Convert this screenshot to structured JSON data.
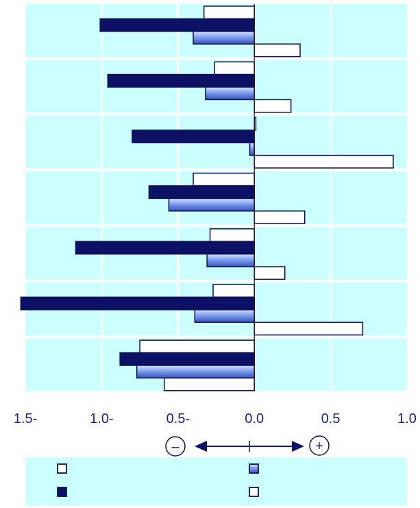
{
  "chart_data": {
    "type": "bar",
    "orientation": "horizontal",
    "grouped": true,
    "groups": 7,
    "xlim": [
      -1.5,
      1.0
    ],
    "x_ticks": [
      -1.5,
      -1.0,
      -0.5,
      0.0,
      0.5,
      1.0
    ],
    "x_tick_labels": [
      "1.5-",
      "1.0-",
      "0.5-",
      "0.0",
      "0.5",
      "1.0"
    ],
    "grid": true,
    "legend_position": "bottom",
    "series": [
      {
        "style": "white",
        "values": [
          -0.33,
          -0.26,
          0.01,
          -0.4,
          -0.29,
          -0.27,
          -0.75
        ]
      },
      {
        "style": "navy",
        "values": [
          -1.01,
          -0.96,
          -0.8,
          -0.69,
          -1.17,
          -1.53,
          -0.88
        ]
      },
      {
        "style": "blue-gradient",
        "values": [
          -0.4,
          -0.32,
          -0.03,
          -0.56,
          -0.31,
          -0.39,
          -0.77
        ]
      },
      {
        "style": "white",
        "values": [
          0.3,
          0.24,
          0.91,
          0.33,
          0.2,
          0.71,
          -0.59
        ]
      }
    ],
    "direction_indicator": {
      "negative_symbol": "–",
      "positive_symbol": "+"
    }
  },
  "colors": {
    "panel": "#ccffff",
    "grid": "#ffffff",
    "navy": "#0d1166",
    "outline": "#0b0f4f",
    "text": "#1a237e",
    "legend_bg": "#ccffff"
  },
  "legend": {
    "items": [
      {
        "style": "white"
      },
      {
        "style": "blue-gradient"
      },
      {
        "style": "navy"
      },
      {
        "style": "white"
      }
    ]
  }
}
